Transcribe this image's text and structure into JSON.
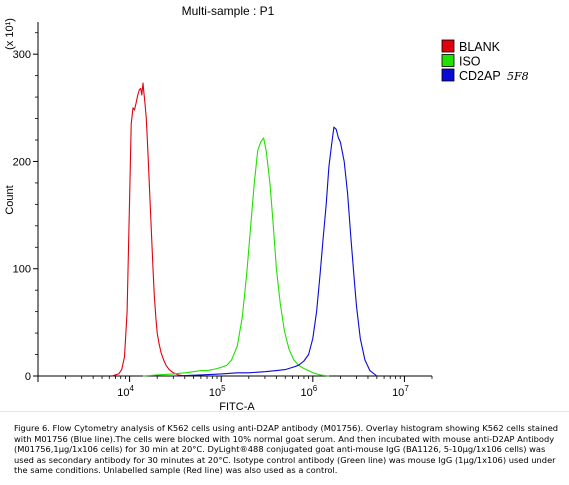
{
  "chart_data": {
    "type": "line",
    "title": "Multi-sample : P1",
    "xlabel": "FITC-A",
    "ylabel": "Count",
    "y_multiplier": "(x 10¹)",
    "x_scale": "log",
    "xlim": [
      1000,
      20000000
    ],
    "ylim": [
      0,
      330
    ],
    "x_ticks": [
      {
        "value": 10000,
        "base": "10",
        "exp": "4"
      },
      {
        "value": 100000,
        "base": "10",
        "exp": "5"
      },
      {
        "value": 1000000,
        "base": "10",
        "exp": "6"
      },
      {
        "value": 10000000,
        "base": "10",
        "exp": "7"
      }
    ],
    "y_ticks": [
      0,
      100,
      200,
      300
    ],
    "legend_position": "top-right",
    "series": [
      {
        "name": "BLANK",
        "color": "#e0000f",
        "x": [
          6400,
          7000,
          7600,
          8200,
          8800,
          9400,
          10000,
          10400,
          10900,
          11300,
          11800,
          12300,
          12800,
          13200,
          13600,
          14000,
          14300,
          14700,
          15200,
          15700,
          16200,
          16800,
          17400,
          18000,
          18600,
          19300,
          20000,
          21000,
          22000,
          23500,
          25000,
          27000,
          30000,
          34000,
          40000
        ],
        "y": [
          0,
          1,
          2,
          6,
          18,
          60,
          165,
          235,
          250,
          248,
          255,
          262,
          267,
          268,
          262,
          273,
          265,
          255,
          240,
          215,
          190,
          160,
          130,
          100,
          75,
          55,
          40,
          30,
          22,
          15,
          10,
          6,
          3,
          1,
          0
        ]
      },
      {
        "name": "ISO",
        "color": "#22e000",
        "x": [
          14000,
          20000,
          30000,
          40000,
          50000,
          60000,
          70000,
          80000,
          90000,
          100000,
          115000,
          130000,
          150000,
          170000,
          190000,
          210000,
          230000,
          250000,
          270000,
          290000,
          310000,
          340000,
          370000,
          400000,
          440000,
          490000,
          550000,
          620000,
          700000,
          800000,
          900000,
          1000000,
          1200000,
          1500000
        ],
        "y": [
          0,
          1,
          2,
          3,
          4,
          5,
          5,
          6,
          7,
          8,
          10,
          15,
          28,
          55,
          95,
          140,
          180,
          210,
          218,
          222,
          210,
          180,
          140,
          100,
          68,
          42,
          25,
          15,
          10,
          7,
          5,
          3,
          1,
          0
        ]
      },
      {
        "name": "CD2AP",
        "annotation": "5F8",
        "color": "#0a0ad6",
        "x": [
          30000,
          60000,
          100000,
          150000,
          200000,
          300000,
          400000,
          500000,
          600000,
          700000,
          800000,
          900000,
          1000000,
          1100000,
          1200000,
          1300000,
          1400000,
          1500000,
          1600000,
          1700000,
          1800000,
          1900000,
          2000000,
          2200000,
          2400000,
          2600000,
          2800000,
          3000000,
          3300000,
          3700000,
          4200000,
          5000000
        ],
        "y": [
          0,
          1,
          2,
          3,
          3,
          4,
          5,
          6,
          8,
          10,
          14,
          20,
          35,
          60,
          95,
          130,
          160,
          195,
          215,
          232,
          230,
          222,
          218,
          200,
          170,
          130,
          95,
          65,
          35,
          15,
          5,
          0
        ]
      }
    ]
  },
  "caption": "Figure 6. Flow Cytometry analysis of K562 cells using anti-D2AP antibody (M01756). Overlay histogram showing K562 cells stained with M01756 (Blue line).The cells were blocked with 10% normal goat serum. And then incubated with mouse anti-D2AP Antibody (M01756,1μg/1x106 cells) for 30 min at 20°C. DyLight®488 conjugated goat anti-mouse IgG (BA1126, 5-10μg/1x106 cells) was used as secondary antibody for 30 minutes at 20°C. Isotype control antibody (Green line) was mouse IgG (1μg/1x106) used under the same conditions. Unlabelled sample (Red line) was also used as a control."
}
